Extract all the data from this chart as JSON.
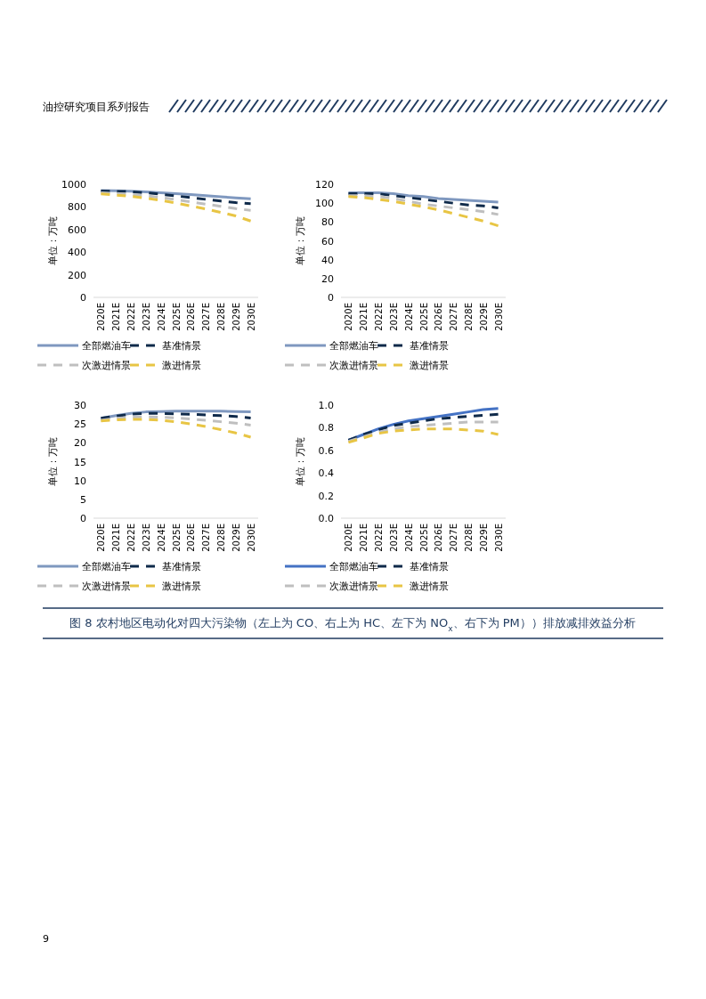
{
  "chart_data": [
    {
      "type": "line",
      "ylabel": "单位：万吨",
      "annotations": [
        "油控研究项目系列报告"
      ],
      "categories": [
        "2020E",
        "2021E",
        "2022E",
        "2023E",
        "2024E",
        "2025E",
        "2026E",
        "2027E",
        "2028E",
        "2029E",
        "2030E"
      ],
      "ylim": [
        0,
        1000
      ],
      "yticks": [
        0,
        200,
        400,
        600,
        800,
        1000
      ],
      "legend": "bottom",
      "series": [
        {
          "name": "全部燃油车",
          "color": "#7f98bf",
          "line_style": "solid",
          "values": [
            945,
            942,
            938,
            933,
            926,
            918,
            910,
            900,
            890,
            880,
            872
          ]
        },
        {
          "name": "基准情景",
          "color": "#0f2a4a",
          "line_style": "dashed",
          "values": [
            940,
            938,
            935,
            925,
            912,
            898,
            882,
            867,
            852,
            838,
            828
          ]
        },
        {
          "name": "次激进情景",
          "color": "#bfbfbf",
          "line_style": "dashed",
          "values": [
            925,
            920,
            910,
            898,
            883,
            865,
            845,
            825,
            805,
            785,
            770
          ]
        },
        {
          "name": "激进情景",
          "color": "#e8c544",
          "line_style": "dashed",
          "values": [
            915,
            905,
            893,
            877,
            858,
            835,
            808,
            782,
            752,
            720,
            675
          ]
        }
      ]
    },
    {
      "type": "line",
      "ylabel": "单位：万吨",
      "categories": [
        "2020E",
        "2021E",
        "2022E",
        "2023E",
        "2024E",
        "2025E",
        "2026E",
        "2027E",
        "2028E",
        "2029E",
        "2030E"
      ],
      "ylim": [
        0,
        120
      ],
      "yticks": [
        0,
        20,
        40,
        60,
        80,
        100,
        120
      ],
      "legend": "bottom",
      "series": [
        {
          "name": "全部燃油车",
          "color": "#7f98bf",
          "line_style": "solid",
          "values": [
            111,
            111,
            111,
            110,
            108,
            107,
            105,
            104,
            103,
            102,
            101
          ]
        },
        {
          "name": "基准情景",
          "color": "#0f2a4a",
          "line_style": "dashed",
          "values": [
            110,
            110,
            110,
            108,
            106,
            104,
            102,
            100,
            98,
            97,
            95
          ]
        },
        {
          "name": "次激进情景",
          "color": "#bfbfbf",
          "line_style": "dashed",
          "values": [
            108,
            108,
            107,
            105,
            102,
            99,
            97,
            95,
            93,
            91,
            88
          ]
        },
        {
          "name": "激进情景",
          "color": "#e8c544",
          "line_style": "dashed",
          "values": [
            107,
            106,
            104,
            102,
            99,
            96,
            93,
            89,
            85,
            81,
            76
          ]
        }
      ]
    },
    {
      "type": "line",
      "ylabel": "单位：万吨",
      "categories": [
        "2020E",
        "2021E",
        "2022E",
        "2023E",
        "2024E",
        "2025E",
        "2026E",
        "2027E",
        "2028E",
        "2029E",
        "2030E"
      ],
      "ylim": [
        0,
        30
      ],
      "yticks": [
        0,
        5,
        10,
        15,
        20,
        25,
        30
      ],
      "legend": "bottom",
      "series": [
        {
          "name": "全部燃油车",
          "color": "#7f98bf",
          "line_style": "solid",
          "values": [
            26.5,
            27.2,
            27.8,
            28.2,
            28.3,
            28.4,
            28.4,
            28.4,
            28.4,
            28.3,
            28.2
          ]
        },
        {
          "name": "基准情景",
          "color": "#0f2a4a",
          "line_style": "dashed",
          "values": [
            26.5,
            27.1,
            27.6,
            27.8,
            27.8,
            27.7,
            27.6,
            27.4,
            27.2,
            27.0,
            26.6
          ]
        },
        {
          "name": "次激进情景",
          "color": "#bfbfbf",
          "line_style": "dashed",
          "values": [
            26.0,
            26.5,
            26.8,
            26.9,
            26.8,
            26.6,
            26.3,
            26.0,
            25.6,
            25.2,
            24.7
          ]
        },
        {
          "name": "激进情景",
          "color": "#e8c544",
          "line_style": "dashed",
          "values": [
            25.8,
            26.1,
            26.2,
            26.2,
            26.0,
            25.6,
            25.0,
            24.3,
            23.5,
            22.6,
            21.5
          ]
        }
      ]
    },
    {
      "type": "line",
      "ylabel": "单位：万吨",
      "annotations": [
        "图 8 农村地区电动化对四大污染物（左上为 CO、右上为 HC、左下为 NO$_{x}$、右下为 PM））排放减排效益分析",
        "9"
      ],
      "categories": [
        "2020E",
        "2021E",
        "2022E",
        "2023E",
        "2024E",
        "2025E",
        "2026E",
        "2027E",
        "2028E",
        "2029E",
        "2030E"
      ],
      "ylim": [
        0,
        1.0
      ],
      "yticks": [
        {
          "value": 0,
          "label": "0.0"
        },
        0.2,
        0.4,
        0.6,
        0.8,
        {
          "value": 1.0,
          "label": "1.0"
        }
      ],
      "legend": "bottom",
      "series": [
        {
          "name": "全部燃油车",
          "color": "#4472c4",
          "line_style": "solid",
          "values": [
            0.69,
            0.74,
            0.79,
            0.83,
            0.86,
            0.88,
            0.9,
            0.92,
            0.94,
            0.96,
            0.97
          ]
        },
        {
          "name": "基准情景",
          "color": "#0f2a4a",
          "line_style": "dashed",
          "values": [
            0.69,
            0.74,
            0.78,
            0.82,
            0.84,
            0.86,
            0.88,
            0.89,
            0.9,
            0.91,
            0.92
          ]
        },
        {
          "name": "次激进情景",
          "color": "#bfbfbf",
          "line_style": "dashed",
          "values": [
            0.68,
            0.72,
            0.76,
            0.79,
            0.81,
            0.82,
            0.83,
            0.84,
            0.85,
            0.85,
            0.85
          ]
        },
        {
          "name": "激进情景",
          "color": "#e8c544",
          "line_style": "dashed",
          "values": [
            0.67,
            0.71,
            0.75,
            0.77,
            0.78,
            0.79,
            0.79,
            0.79,
            0.78,
            0.77,
            0.74
          ]
        }
      ]
    }
  ]
}
